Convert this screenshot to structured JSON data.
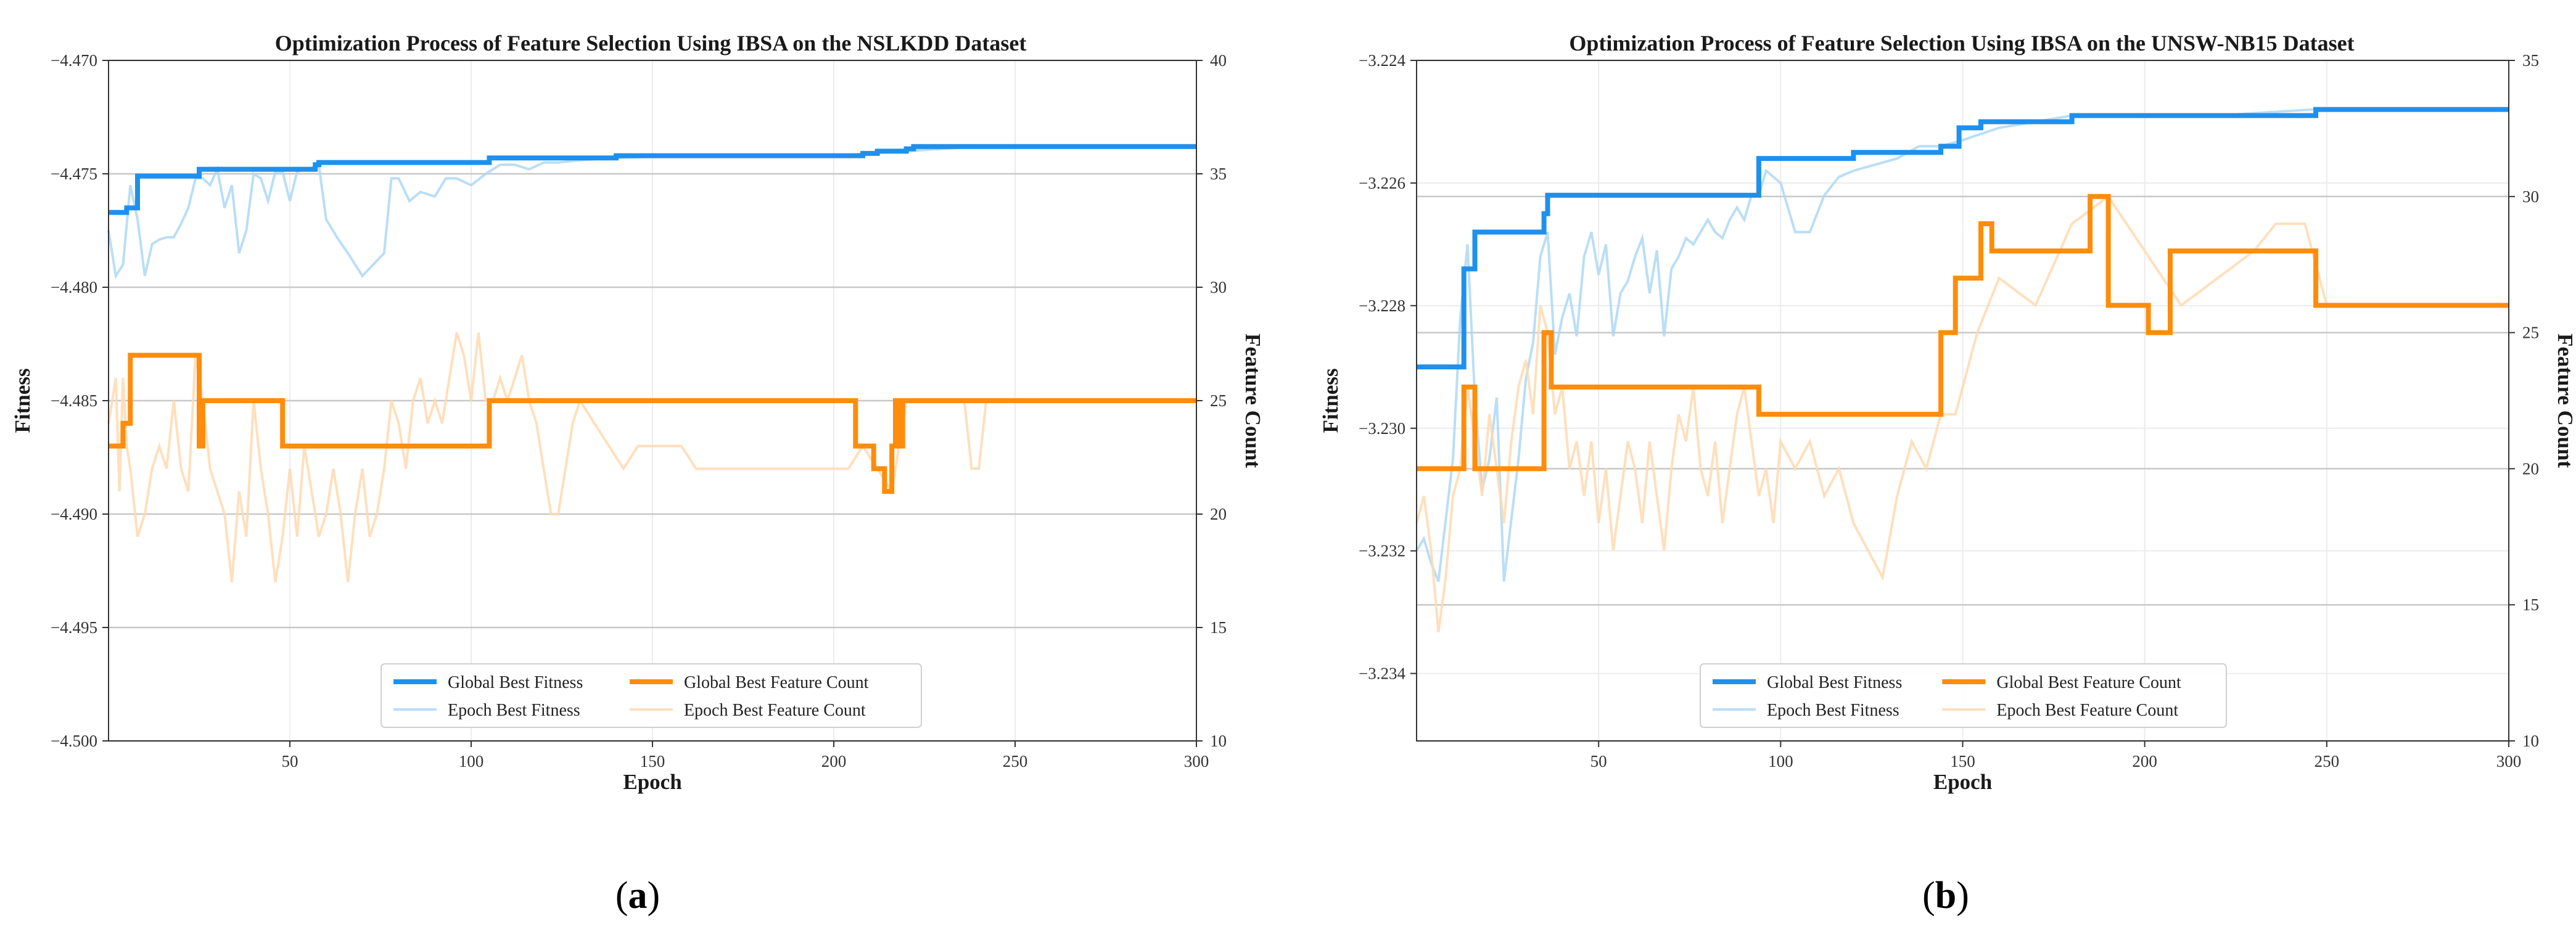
{
  "colors": {
    "global_fitness": "#1e90ee",
    "epoch_fitness": "#aed8f5",
    "global_count": "#ff8c0a",
    "epoch_count": "#ffd9b0",
    "grid_minor": "#ececec",
    "grid_major": "#c8c8c8"
  },
  "chart_data": [
    {
      "type": "line",
      "panel_label": "a",
      "title": "Optimization Process of Feature Selection Using IBSA on the NSLKDD Dataset",
      "xlabel": "Epoch",
      "ylabel_left": "Fitness",
      "ylabel_right": "Feature Count",
      "xlim": [
        0,
        300
      ],
      "ylim_left": [
        -4.5,
        -4.47
      ],
      "ylim_right": [
        10,
        40
      ],
      "x_ticks": [
        50,
        100,
        150,
        200,
        250,
        300
      ],
      "x_tick_labels": [
        "50",
        "100",
        "150",
        "200",
        "250",
        "300"
      ],
      "y_left_ticks": [
        -4.5,
        -4.495,
        -4.49,
        -4.485,
        -4.48,
        -4.475,
        -4.47
      ],
      "y_left_tick_labels": [
        "−4.500",
        "−4.495",
        "−4.490",
        "−4.485",
        "−4.480",
        "−4.475",
        "−4.470"
      ],
      "y_right_ticks": [
        10,
        15,
        20,
        25,
        30,
        35,
        40
      ],
      "y_right_tick_labels": [
        "10",
        "15",
        "20",
        "25",
        "30",
        "35",
        "40"
      ],
      "legend": {
        "location": "lower center",
        "entries": [
          "Global Best Fitness",
          "Global Best Feature Count",
          "Epoch Best Fitness",
          "Epoch Best Feature Count"
        ]
      },
      "series": [
        {
          "name": "Global Best Fitness",
          "axis": "left",
          "role": "global_fitness",
          "step": true,
          "x": [
            0,
            4,
            5,
            6,
            8,
            24,
            25,
            48,
            57,
            58,
            104,
            105,
            120,
            138,
            140,
            204,
            208,
            212,
            215,
            220,
            222,
            300
          ],
          "y": [
            -4.4767,
            -4.4767,
            -4.4765,
            -4.4765,
            -4.4751,
            -4.4751,
            -4.4748,
            -4.4748,
            -4.4746,
            -4.4745,
            -4.4745,
            -4.4743,
            -4.4743,
            -4.4743,
            -4.4742,
            -4.4742,
            -4.4741,
            -4.474,
            -4.474,
            -4.4739,
            -4.4738,
            -4.4738
          ]
        },
        {
          "name": "Epoch Best Fitness",
          "axis": "left",
          "role": "epoch_fitness",
          "x": [
            0,
            2,
            4,
            6,
            8,
            10,
            12,
            14,
            16,
            18,
            20,
            22,
            24,
            26,
            28,
            30,
            32,
            34,
            36,
            38,
            40,
            42,
            44,
            46,
            48,
            50,
            52,
            55,
            58,
            60,
            63,
            66,
            70,
            73,
            76,
            78,
            80,
            83,
            86,
            90,
            93,
            96,
            100,
            104,
            108,
            112,
            116,
            120,
            124,
            130,
            140,
            160,
            200,
            240,
            300
          ],
          "y": [
            -4.4775,
            -4.4795,
            -4.479,
            -4.4755,
            -4.477,
            -4.4795,
            -4.4781,
            -4.4779,
            -4.4778,
            -4.4778,
            -4.4772,
            -4.4765,
            -4.4752,
            -4.4752,
            -4.4755,
            -4.4748,
            -4.4765,
            -4.4755,
            -4.4785,
            -4.4775,
            -4.475,
            -4.4752,
            -4.4762,
            -4.4749,
            -4.4749,
            -4.4762,
            -4.4749,
            -4.4748,
            -4.4746,
            -4.477,
            -4.4778,
            -4.4785,
            -4.4795,
            -4.479,
            -4.4785,
            -4.4752,
            -4.4752,
            -4.4762,
            -4.4758,
            -4.476,
            -4.4752,
            -4.4752,
            -4.4755,
            -4.475,
            -4.4746,
            -4.4746,
            -4.4748,
            -4.4745,
            -4.4745,
            -4.4744,
            -4.4743,
            -4.4742,
            -4.4742,
            -4.4738,
            -4.4738
          ]
        },
        {
          "name": "Global Best Feature Count",
          "axis": "right",
          "role": "global_count",
          "step": true,
          "x": [
            0,
            4,
            5,
            6,
            24,
            25,
            26,
            48,
            104,
            105,
            204,
            206,
            209,
            211,
            214,
            215,
            216,
            217,
            218,
            219,
            300
          ],
          "y": [
            23,
            24,
            24,
            27,
            27,
            23,
            25,
            23,
            23,
            25,
            25,
            23,
            23,
            22,
            21,
            21,
            23,
            25,
            23,
            25,
            25
          ]
        },
        {
          "name": "Epoch Best Feature Count",
          "axis": "right",
          "role": "epoch_count",
          "x": [
            0,
            2,
            3,
            4,
            5,
            6,
            8,
            10,
            12,
            14,
            16,
            18,
            20,
            22,
            24,
            26,
            28,
            30,
            32,
            34,
            36,
            38,
            40,
            42,
            44,
            46,
            48,
            50,
            52,
            54,
            56,
            58,
            60,
            62,
            64,
            66,
            68,
            70,
            72,
            74,
            76,
            78,
            80,
            82,
            84,
            86,
            88,
            90,
            92,
            94,
            96,
            98,
            100,
            102,
            104,
            106,
            108,
            110,
            112,
            114,
            116,
            118,
            120,
            122,
            124,
            126,
            128,
            130,
            134,
            138,
            142,
            146,
            150,
            154,
            158,
            162,
            166,
            170,
            180,
            190,
            200,
            204,
            208,
            212,
            216,
            220,
            225,
            230,
            236,
            238,
            240,
            242,
            250,
            300
          ],
          "y": [
            24,
            26,
            21,
            26,
            23,
            22,
            19,
            20,
            22,
            23,
            22,
            25,
            22,
            21,
            27,
            25,
            22,
            21,
            20,
            17,
            21,
            19,
            25,
            22,
            20,
            17,
            19,
            22,
            19,
            23,
            21,
            19,
            20,
            22,
            20,
            17,
            20,
            22,
            19,
            20,
            22,
            25,
            24,
            22,
            25,
            26,
            24,
            25,
            24,
            26,
            28,
            27,
            25,
            28,
            25,
            25,
            26,
            25,
            26,
            27,
            25,
            24,
            22,
            20,
            20,
            22,
            24,
            25,
            24,
            23,
            22,
            23,
            23,
            23,
            23,
            22,
            22,
            22,
            22,
            22,
            22,
            22,
            23,
            22,
            21,
            25,
            25,
            25,
            25,
            22,
            22,
            25,
            25,
            25
          ]
        }
      ]
    },
    {
      "type": "line",
      "panel_label": "b",
      "title": "Optimization Process of Feature Selection Using IBSA on the UNSW-NB15 Dataset",
      "xlabel": "Epoch",
      "ylabel_left": "Fitness",
      "ylabel_right": "Feature Count",
      "xlim": [
        0,
        300
      ],
      "ylim_left": [
        -3.2351,
        -3.224
      ],
      "ylim_right": [
        10,
        35
      ],
      "x_ticks": [
        50,
        100,
        150,
        200,
        250,
        300
      ],
      "x_tick_labels": [
        "50",
        "100",
        "150",
        "200",
        "250",
        "300"
      ],
      "y_left_ticks": [
        -3.234,
        -3.232,
        -3.23,
        -3.228,
        -3.226,
        -3.224
      ],
      "y_left_tick_labels": [
        "−3.234",
        "−3.232",
        "−3.230",
        "−3.228",
        "−3.226",
        "−3.224"
      ],
      "y_right_ticks": [
        10,
        15,
        20,
        25,
        30,
        35
      ],
      "y_right_tick_labels": [
        "10",
        "15",
        "20",
        "25",
        "30",
        "35"
      ],
      "legend": {
        "location": "lower center",
        "entries": [
          "Global Best Fitness",
          "Global Best Feature Count",
          "Epoch Best Fitness",
          "Epoch Best Feature Count"
        ]
      },
      "series": [
        {
          "name": "Global Best Fitness",
          "axis": "left",
          "role": "global_fitness",
          "step": true,
          "x": [
            0,
            12,
            13,
            15,
            16,
            34,
            35,
            36,
            93,
            94,
            119,
            120,
            143,
            144,
            148,
            149,
            150,
            155,
            157,
            160,
            180,
            185,
            210,
            240,
            246,
            247,
            300
          ],
          "y": [
            -3.229,
            -3.229,
            -3.2274,
            -3.2274,
            -3.2268,
            -3.2268,
            -3.2265,
            -3.2262,
            -3.2262,
            -3.2256,
            -3.2256,
            -3.2255,
            -3.2255,
            -3.2254,
            -3.2254,
            -3.2251,
            -3.2251,
            -3.225,
            -3.225,
            -3.225,
            -3.2249,
            -3.2249,
            -3.2249,
            -3.2249,
            -3.2249,
            -3.2248,
            -3.2248
          ]
        },
        {
          "name": "Epoch Best Fitness",
          "axis": "left",
          "role": "epoch_fitness",
          "x": [
            0,
            2,
            4,
            6,
            8,
            10,
            12,
            14,
            16,
            18,
            20,
            22,
            24,
            26,
            28,
            30,
            32,
            34,
            36,
            38,
            40,
            42,
            44,
            46,
            48,
            50,
            52,
            54,
            56,
            58,
            60,
            62,
            64,
            66,
            68,
            70,
            72,
            74,
            76,
            78,
            80,
            82,
            84,
            86,
            88,
            90,
            92,
            94,
            96,
            100,
            104,
            108,
            112,
            116,
            120,
            126,
            132,
            138,
            144,
            150,
            160,
            170,
            180,
            190,
            200,
            220,
            246,
            300
          ],
          "y": [
            -3.232,
            -3.2318,
            -3.2322,
            -3.2325,
            -3.2315,
            -3.2305,
            -3.2282,
            -3.227,
            -3.2295,
            -3.231,
            -3.2305,
            -3.2295,
            -3.2325,
            -3.2315,
            -3.2305,
            -3.2292,
            -3.2286,
            -3.2272,
            -3.2268,
            -3.2288,
            -3.2282,
            -3.2278,
            -3.2285,
            -3.2272,
            -3.2268,
            -3.2275,
            -3.227,
            -3.2285,
            -3.2278,
            -3.2276,
            -3.2272,
            -3.2269,
            -3.2278,
            -3.2271,
            -3.2285,
            -3.2274,
            -3.2272,
            -3.2269,
            -3.227,
            -3.2268,
            -3.2266,
            -3.2268,
            -3.2269,
            -3.2266,
            -3.2264,
            -3.2266,
            -3.2262,
            -3.2262,
            -3.2258,
            -3.226,
            -3.2268,
            -3.2268,
            -3.2262,
            -3.2259,
            -3.2258,
            -3.2257,
            -3.2256,
            -3.2254,
            -3.2254,
            -3.2253,
            -3.2251,
            -3.225,
            -3.2249,
            -3.2249,
            -3.2249,
            -3.2249,
            -3.2248,
            -3.2248
          ]
        },
        {
          "name": "Global Best Feature Count",
          "axis": "right",
          "role": "global_count",
          "step": true,
          "x": [
            0,
            12,
            13,
            15,
            16,
            34,
            35,
            36,
            37,
            93,
            94,
            143,
            144,
            147,
            148,
            152,
            153,
            155,
            156,
            157,
            158,
            184,
            185,
            189,
            190,
            200,
            201,
            206,
            207,
            246,
            247,
            300
          ],
          "y": [
            20,
            20,
            23,
            23,
            20,
            20,
            25,
            25,
            23,
            23,
            22,
            22,
            25,
            25,
            27,
            27,
            27,
            29,
            29,
            29,
            28,
            28,
            30,
            30,
            26,
            26,
            25,
            25,
            28,
            28,
            26,
            26
          ]
        },
        {
          "name": "Epoch Best Feature Count",
          "axis": "right",
          "role": "epoch_count",
          "x": [
            0,
            2,
            4,
            6,
            8,
            10,
            12,
            14,
            16,
            18,
            20,
            22,
            24,
            26,
            28,
            30,
            32,
            34,
            36,
            38,
            40,
            42,
            44,
            46,
            48,
            50,
            52,
            54,
            56,
            58,
            60,
            62,
            64,
            66,
            68,
            70,
            72,
            74,
            76,
            78,
            80,
            82,
            84,
            86,
            88,
            90,
            92,
            94,
            96,
            98,
            100,
            104,
            108,
            112,
            116,
            120,
            124,
            128,
            132,
            136,
            140,
            144,
            148,
            154,
            160,
            170,
            180,
            190,
            200,
            210,
            220,
            230,
            236,
            244,
            250,
            300
          ],
          "y": [
            18,
            19,
            17,
            14,
            16,
            19,
            20,
            23,
            21,
            19,
            22,
            20,
            18,
            21,
            23,
            24,
            22,
            26,
            25,
            22,
            23,
            20,
            21,
            19,
            21,
            18,
            20,
            17,
            19,
            21,
            20,
            18,
            21,
            19,
            17,
            20,
            22,
            21,
            23,
            20,
            19,
            21,
            18,
            20,
            22,
            23,
            21,
            19,
            20,
            18,
            21,
            20,
            21,
            19,
            20,
            18,
            17,
            16,
            19,
            21,
            20,
            22,
            22,
            25,
            27,
            26,
            29,
            30,
            28,
            26,
            27,
            28,
            29,
            29,
            26,
            26
          ]
        }
      ]
    }
  ],
  "captions": [
    {
      "open": "(",
      "label": "a",
      "close": ")"
    },
    {
      "open": "(",
      "label": "b",
      "close": ")"
    }
  ]
}
